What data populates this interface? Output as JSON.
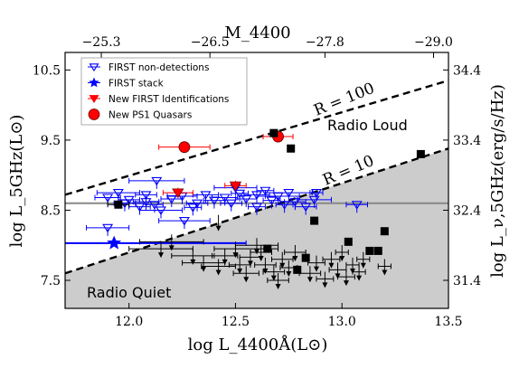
{
  "chart_data": {
    "type": "scatter",
    "xlabel": "log L_4400Å(L⊙)",
    "ylabel": "log L_5GHz(L⊙)",
    "top_xlabel": "M_4400",
    "right_ylabel": "log L_ν,5GHz(erg/s/Hz)",
    "xlim": [
      11.7,
      13.5
    ],
    "ylim": [
      7.1,
      10.75
    ],
    "x_ticks": [
      "12.0",
      "12.5",
      "13.0",
      "13.5"
    ],
    "x_tick_values": [
      12.0,
      12.5,
      13.0,
      13.5
    ],
    "y_ticks": [
      "7.5",
      "8.5",
      "9.5",
      "10.5"
    ],
    "y_tick_values": [
      7.5,
      8.5,
      9.5,
      10.5
    ],
    "top_ticks": [
      "−25.3",
      "−26.5",
      "−27.8",
      "−29.0"
    ],
    "top_tick_values": [
      11.87,
      12.38,
      12.92,
      13.43
    ],
    "right_ticks": [
      "31.4",
      "32.4",
      "33.4",
      "34.4"
    ],
    "right_tick_values": [
      7.5,
      8.5,
      9.5,
      10.5
    ],
    "lines": {
      "R100": {
        "label": "R = 100",
        "x": [
          11.7,
          13.5
        ],
        "y": [
          8.72,
          10.35
        ]
      },
      "R10": {
        "label": "R = 10",
        "x": [
          11.7,
          13.5
        ],
        "y": [
          7.6,
          9.38
        ]
      },
      "hline_y": 8.6
    },
    "region_labels": {
      "loud": "Radio Loud",
      "quiet": "Radio Quiet"
    },
    "legend": [
      {
        "label": "FIRST non-detections",
        "marker": "tri-down-open",
        "color": "#0000ff"
      },
      {
        "label": "FIRST stack",
        "marker": "star",
        "color": "#0000ff"
      },
      {
        "label": "New FIRST Identifications",
        "marker": "tri-down-filled",
        "color": "#ff0000"
      },
      {
        "label": "New PS1 Quasars",
        "marker": "circle",
        "color": "#ff0000"
      }
    ],
    "colors": {
      "first": "#0000ff",
      "new_first": "#ff0000",
      "ps1": "#ff0000",
      "archival": "#000000",
      "shade": "#cccccc",
      "hline": "#888888"
    },
    "series": [
      {
        "name": "FIRST non-detections",
        "points": [
          [
            11.95,
            8.75,
            0.1,
            0
          ],
          [
            11.9,
            8.25,
            0.1,
            0
          ],
          [
            12.13,
            8.92,
            0.13,
            0
          ],
          [
            12.15,
            8.5,
            0.1,
            0
          ],
          [
            12.26,
            8.35,
            0.12,
            0
          ],
          [
            12.5,
            8.82,
            0.1,
            0
          ],
          [
            12.7,
            8.7,
            0.1,
            0
          ],
          [
            12.75,
            8.75,
            0.11,
            0
          ],
          [
            12.87,
            8.65,
            0.08,
            0
          ],
          [
            13.07,
            8.58,
            0.05,
            0
          ],
          [
            11.9,
            8.68,
            0.06,
            0
          ],
          [
            12.0,
            8.65,
            0.05,
            0
          ],
          [
            12.08,
            8.62,
            0.06,
            0
          ],
          [
            12.25,
            8.7,
            0.07,
            0
          ],
          [
            12.32,
            8.6,
            0.05,
            0
          ],
          [
            12.36,
            8.72,
            0.06,
            0
          ],
          [
            12.45,
            8.68,
            0.06,
            0
          ],
          [
            12.55,
            8.66,
            0.05,
            0
          ],
          [
            12.6,
            8.72,
            0.06,
            0
          ],
          [
            12.78,
            8.62,
            0.05,
            0
          ],
          [
            12.83,
            8.55,
            0.05,
            0
          ],
          [
            12.6,
            8.55,
            0.04,
            0
          ],
          [
            12.08,
            8.72,
            0.05,
            0
          ],
          [
            12.2,
            8.66,
            0.05,
            0
          ],
          [
            12.4,
            8.64,
            0.05,
            0
          ],
          [
            12.48,
            8.6,
            0.05,
            0
          ],
          [
            12.67,
            8.64,
            0.04,
            0
          ],
          [
            12.73,
            8.58,
            0.04,
            0
          ],
          [
            12.88,
            8.75,
            0.03,
            0
          ],
          [
            12.05,
            8.55,
            0.05,
            0
          ],
          [
            11.98,
            8.6,
            0.05,
            0
          ],
          [
            12.12,
            8.58,
            0.04,
            0
          ],
          [
            12.3,
            8.54,
            0.04,
            0
          ],
          [
            12.52,
            8.74,
            0.04,
            0
          ],
          [
            12.64,
            8.78,
            0.04,
            0
          ]
        ]
      },
      {
        "name": "FIRST stack",
        "points": [
          [
            11.93,
            8.03,
            0.62,
            0
          ]
        ]
      },
      {
        "name": "New FIRST Identifications",
        "points": [
          [
            12.23,
            8.75,
            0.07,
            0.07
          ],
          [
            12.5,
            8.85,
            0.05,
            0.07
          ]
        ]
      },
      {
        "name": "New PS1 Quasars",
        "points": [
          [
            12.26,
            9.4,
            0.12,
            0
          ],
          [
            12.7,
            9.55,
            0.07,
            0.06
          ]
        ]
      },
      {
        "name": "",
        "points": [
          [
            11.95,
            8.58,
            0.05,
            0
          ],
          [
            12.68,
            9.6,
            0.0,
            0
          ],
          [
            12.76,
            9.38,
            0.0,
            0
          ],
          [
            12.87,
            8.35,
            0.0,
            0
          ],
          [
            13.03,
            8.05,
            0.0,
            0
          ],
          [
            13.2,
            8.2,
            0.0,
            0
          ],
          [
            13.37,
            9.3,
            0.0,
            0
          ],
          [
            12.65,
            7.95,
            0.05,
            0
          ],
          [
            12.79,
            7.65,
            0.0,
            0
          ],
          [
            12.83,
            7.82,
            0.0,
            0
          ],
          [
            13.13,
            7.92,
            0.0,
            0
          ],
          [
            13.17,
            7.92,
            0.0,
            0
          ],
          [
            12.42,
            8.33,
            0.0,
            0
          ],
          [
            12.15,
            7.95,
            0.15,
            0
          ],
          [
            12.2,
            8.05,
            0.15,
            0
          ],
          [
            12.3,
            7.85,
            0.1,
            0
          ],
          [
            12.35,
            7.75,
            0.1,
            0
          ],
          [
            12.42,
            7.7,
            0.08,
            0
          ],
          [
            12.5,
            7.95,
            0.1,
            0
          ],
          [
            12.55,
            7.6,
            0.06,
            0
          ],
          [
            12.6,
            8.0,
            0.1,
            0
          ],
          [
            12.64,
            7.72,
            0.05,
            0
          ],
          [
            12.7,
            7.5,
            0.05,
            0
          ],
          [
            12.72,
            7.8,
            0.05,
            0
          ],
          [
            12.75,
            7.68,
            0.04,
            0
          ],
          [
            12.78,
            7.9,
            0.05,
            0
          ],
          [
            12.85,
            7.6,
            0.05,
            0
          ],
          [
            12.88,
            7.75,
            0.04,
            0
          ],
          [
            12.92,
            7.52,
            0.04,
            0
          ],
          [
            12.95,
            7.8,
            0.04,
            0
          ],
          [
            12.98,
            7.65,
            0.04,
            0
          ],
          [
            13.0,
            7.9,
            0.03,
            0
          ],
          [
            13.02,
            7.55,
            0.04,
            0
          ],
          [
            13.05,
            7.72,
            0.03,
            0
          ],
          [
            13.08,
            7.62,
            0.03,
            0
          ],
          [
            13.1,
            7.8,
            0.03,
            0
          ],
          [
            13.2,
            7.7,
            0.03,
            0
          ],
          [
            12.62,
            7.9,
            0.05,
            0
          ],
          [
            12.45,
            7.85,
            0.06,
            0
          ],
          [
            12.52,
            7.72,
            0.05,
            0
          ],
          [
            12.57,
            7.83,
            0.05,
            0
          ],
          [
            12.68,
            7.62,
            0.05,
            0
          ]
        ]
      }
    ],
    "grid": false,
    "legend_position": "top-left"
  }
}
